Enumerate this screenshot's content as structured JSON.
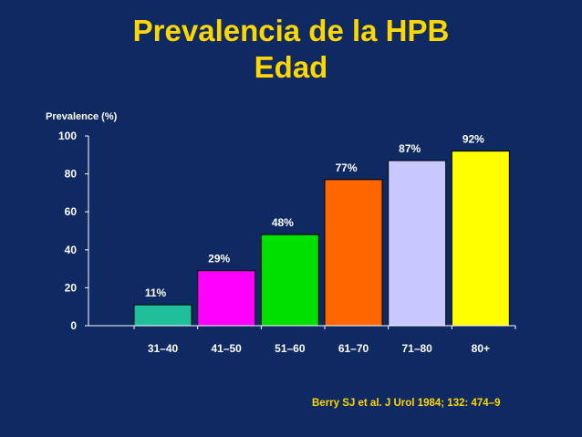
{
  "slide": {
    "title": "Prevalencia de la HPB",
    "subtitle": "Edad",
    "citation": "Berry SJ et al. J Urol 1984; 132: 474–9"
  },
  "colors": {
    "background": "#0f2a63",
    "title": "#ffd700",
    "text": "#ffffff"
  },
  "chart_data": {
    "type": "bar",
    "ylabel": "Prevalence (%)",
    "xlabel": "",
    "ylim": [
      0,
      100
    ],
    "yticks": [
      0,
      20,
      40,
      60,
      80,
      100
    ],
    "categories": [
      "31–40",
      "41–50",
      "51–60",
      "61–70",
      "71–80",
      "80+"
    ],
    "values": [
      11,
      29,
      48,
      77,
      87,
      92
    ],
    "data_labels": [
      "11%",
      "29%",
      "48%",
      "77%",
      "87%",
      "92%"
    ],
    "bar_colors": [
      "#1fbf9c",
      "#ff00ff",
      "#00e000",
      "#ff6600",
      "#c8c8ff",
      "#ffff00"
    ],
    "grid": false,
    "legend": "none"
  }
}
